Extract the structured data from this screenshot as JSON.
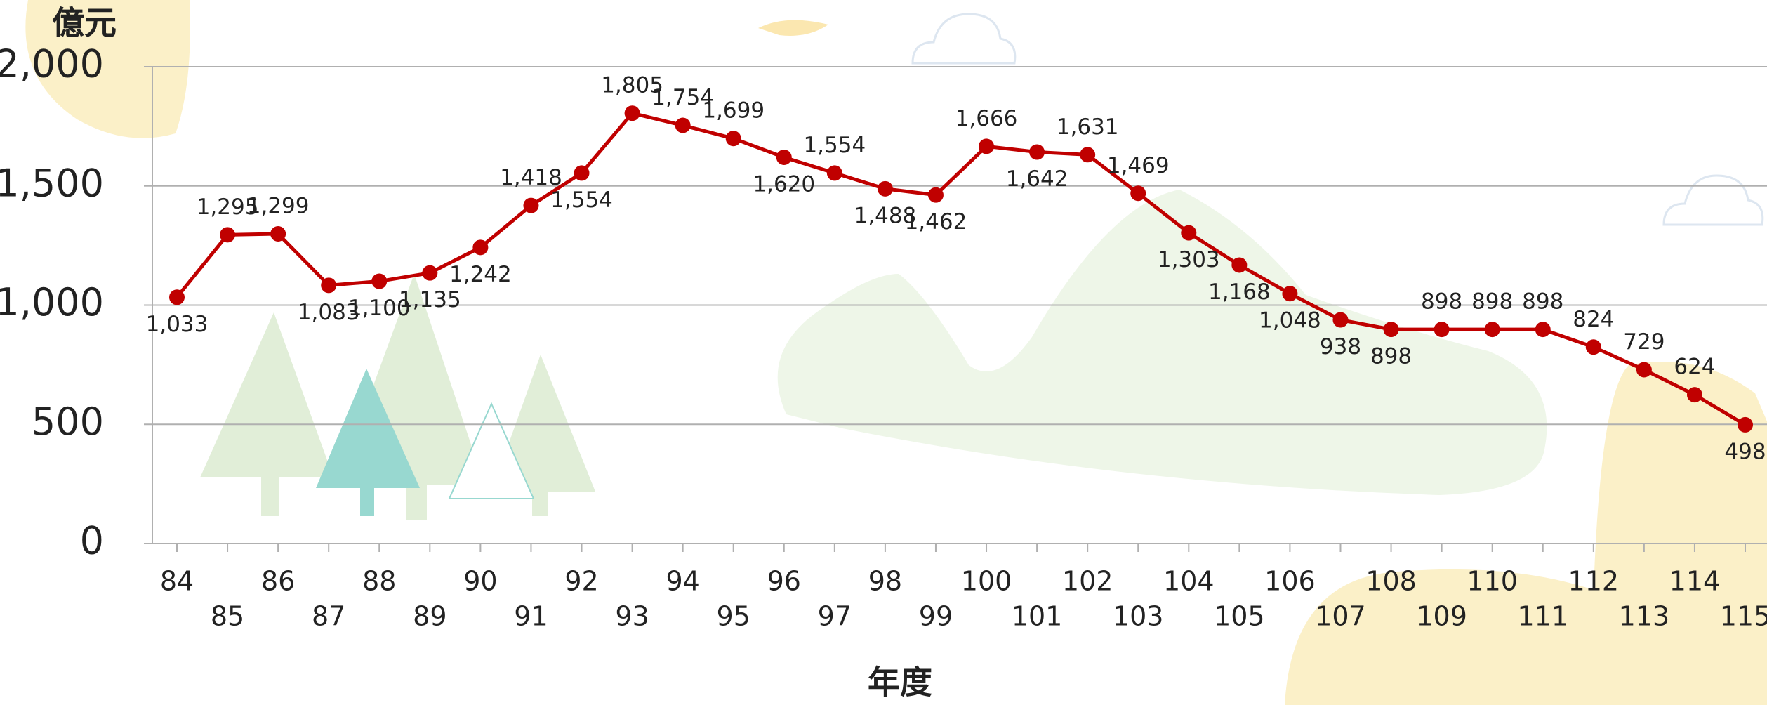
{
  "chart_data": {
    "type": "line",
    "y_axis_label": "億元",
    "x_axis_label": "年度",
    "categories": [
      "84",
      "85",
      "86",
      "87",
      "88",
      "89",
      "90",
      "91",
      "92",
      "93",
      "94",
      "95",
      "96",
      "97",
      "98",
      "99",
      "100",
      "101",
      "102",
      "103",
      "104",
      "105",
      "106",
      "107",
      "108",
      "109",
      "110",
      "111",
      "112",
      "113",
      "114",
      "115"
    ],
    "series": [
      {
        "color": "#c00000",
        "values": [
          1033,
          1295,
          1299,
          1083,
          1100,
          1135,
          1242,
          1418,
          1554,
          1805,
          1754,
          1699,
          1620,
          1554,
          1488,
          1462,
          1666,
          1642,
          1631,
          1469,
          1303,
          1168,
          1048,
          938,
          898,
          898,
          898,
          898,
          824,
          729,
          624,
          498
        ],
        "value_labels": [
          "1,033",
          "1,295",
          "1,299",
          "1,083",
          "1,100",
          "1,135",
          "1,242",
          "1,418",
          "1,554",
          "1,805",
          "1,754",
          "1,699",
          "1,620",
          "1,554",
          "1,488",
          "1,462",
          "1,666",
          "1,642",
          "1,631",
          "1,469",
          "1,303",
          "1,168",
          "1,048",
          "938",
          "898",
          "898",
          "898",
          "898",
          "824",
          "729",
          "624",
          "498"
        ]
      }
    ],
    "ylim": [
      0,
      2000
    ],
    "yticks": [
      0,
      500,
      {
        "value": 1000,
        "label": "1,000"
      },
      {
        "value": 1500,
        "label": "1,500"
      },
      {
        "value": 2000,
        "label": "2,000"
      }
    ],
    "grid": true
  }
}
